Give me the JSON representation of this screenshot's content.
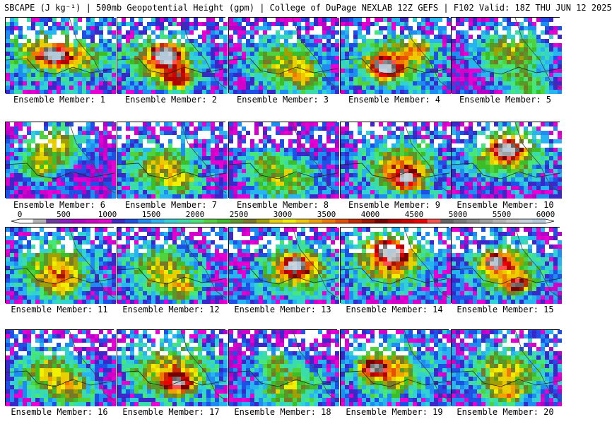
{
  "header": {
    "title": "SBCAPE (J kg⁻¹) | 500mb Geopotential Height (gpm) | College of DuPage NEXLAB 12Z GEFS | F102 Valid: 18Z THU JUN 12 2025"
  },
  "panels": [
    {
      "label": "Ensemble Member: 1",
      "base": 1300,
      "blobs": [
        [
          0.35,
          0.45,
          0.25,
          2000
        ],
        [
          0.7,
          0.55,
          0.2,
          1500
        ],
        [
          0.45,
          0.5,
          0.12,
          3000
        ]
      ]
    },
    {
      "label": "Ensemble Member: 2",
      "base": 1200,
      "blobs": [
        [
          0.4,
          0.55,
          0.28,
          2200
        ],
        [
          0.45,
          0.5,
          0.12,
          3600
        ],
        [
          0.55,
          0.8,
          0.15,
          2500
        ]
      ]
    },
    {
      "label": "Ensemble Member: 3",
      "base": 1100,
      "blobs": [
        [
          0.5,
          0.6,
          0.3,
          1800
        ],
        [
          0.7,
          0.8,
          0.15,
          1400
        ]
      ]
    },
    {
      "label": "Ensemble Member: 4",
      "base": 1200,
      "blobs": [
        [
          0.45,
          0.6,
          0.3,
          2000
        ],
        [
          0.4,
          0.65,
          0.12,
          3200
        ],
        [
          0.7,
          0.4,
          0.15,
          1500
        ]
      ]
    },
    {
      "label": "Ensemble Member: 5",
      "base": 1000,
      "blobs": [
        [
          0.55,
          0.45,
          0.3,
          1800
        ],
        [
          0.7,
          0.9,
          0.2,
          1400
        ]
      ]
    },
    {
      "label": "Ensemble Member: 6",
      "base": 1000,
      "blobs": [
        [
          0.45,
          0.3,
          0.25,
          1800
        ],
        [
          0.3,
          0.6,
          0.2,
          1400
        ]
      ]
    },
    {
      "label": "Ensemble Member: 7",
      "base": 1100,
      "blobs": [
        [
          0.4,
          0.6,
          0.3,
          1800
        ],
        [
          0.6,
          0.8,
          0.15,
          1200
        ]
      ]
    },
    {
      "label": "Ensemble Member: 8",
      "base": 1000,
      "blobs": [
        [
          0.5,
          0.75,
          0.3,
          1700
        ],
        [
          0.3,
          0.5,
          0.15,
          1000
        ]
      ]
    },
    {
      "label": "Ensemble Member: 9",
      "base": 1200,
      "blobs": [
        [
          0.55,
          0.6,
          0.3,
          2200
        ],
        [
          0.6,
          0.75,
          0.12,
          3100
        ]
      ]
    },
    {
      "label": "Ensemble Member: 10",
      "base": 1100,
      "blobs": [
        [
          0.5,
          0.4,
          0.3,
          2200
        ],
        [
          0.5,
          0.35,
          0.12,
          3200
        ]
      ]
    },
    {
      "label": "Ensemble Member: 11",
      "base": 1100,
      "blobs": [
        [
          0.45,
          0.5,
          0.3,
          1800
        ],
        [
          0.5,
          0.75,
          0.2,
          1400
        ]
      ]
    },
    {
      "label": "Ensemble Member: 12",
      "base": 1100,
      "blobs": [
        [
          0.4,
          0.55,
          0.3,
          1800
        ],
        [
          0.6,
          0.8,
          0.15,
          1500
        ]
      ]
    },
    {
      "label": "Ensemble Member: 13",
      "base": 1150,
      "blobs": [
        [
          0.6,
          0.55,
          0.3,
          2000
        ],
        [
          0.6,
          0.5,
          0.12,
          3200
        ]
      ]
    },
    {
      "label": "Ensemble Member: 14",
      "base": 1200,
      "blobs": [
        [
          0.45,
          0.45,
          0.3,
          2200
        ],
        [
          0.45,
          0.3,
          0.15,
          3400
        ]
      ]
    },
    {
      "label": "Ensemble Member: 15",
      "base": 1100,
      "blobs": [
        [
          0.5,
          0.55,
          0.3,
          2000
        ],
        [
          0.4,
          0.45,
          0.12,
          3100
        ],
        [
          0.6,
          0.75,
          0.1,
          3000
        ]
      ]
    },
    {
      "label": "Ensemble Member: 16",
      "base": 1000,
      "blobs": [
        [
          0.4,
          0.55,
          0.3,
          1800
        ],
        [
          0.6,
          0.8,
          0.2,
          1400
        ]
      ]
    },
    {
      "label": "Ensemble Member: 17",
      "base": 1200,
      "blobs": [
        [
          0.5,
          0.55,
          0.32,
          2100
        ],
        [
          0.55,
          0.7,
          0.12,
          2800
        ]
      ]
    },
    {
      "label": "Ensemble Member: 18",
      "base": 1000,
      "blobs": [
        [
          0.55,
          0.75,
          0.3,
          1700
        ],
        [
          0.4,
          0.4,
          0.15,
          1100
        ]
      ]
    },
    {
      "label": "Ensemble Member: 19",
      "base": 1150,
      "blobs": [
        [
          0.45,
          0.55,
          0.3,
          2000
        ],
        [
          0.3,
          0.5,
          0.12,
          2800
        ]
      ]
    },
    {
      "label": "Ensemble Member: 20",
      "base": 1100,
      "blobs": [
        [
          0.5,
          0.55,
          0.3,
          1900
        ],
        [
          0.5,
          0.85,
          0.15,
          1500
        ]
      ]
    }
  ],
  "colorbar": {
    "ticks": [
      "0",
      "500",
      "1000",
      "1500",
      "2000",
      "2500",
      "3000",
      "3500",
      "4000",
      "4500",
      "5000",
      "5500",
      "6000"
    ],
    "palette": [
      "#ffffff",
      "#b4b4b4",
      "#6e3aa0",
      "#8c1ec8",
      "#b400c8",
      "#d200c8",
      "#e600d2",
      "#3c28c8",
      "#1e50e6",
      "#1e8cf0",
      "#28b4f0",
      "#32d2d2",
      "#3cdcaa",
      "#46e678",
      "#50d23c",
      "#3cbe28",
      "#5a9628",
      "#787828",
      "#a0a000",
      "#e6d200",
      "#f0f000",
      "#f0c800",
      "#f0a000",
      "#f07800",
      "#e65000",
      "#c82800",
      "#a01400",
      "#780000",
      "#b40000",
      "#d20000",
      "#f00000",
      "#ff5050",
      "#646464",
      "#787878",
      "#8c8c8c",
      "#a0a0a0",
      "#b4b4b4",
      "#c8c8c8",
      "#c8d2dc",
      "#b4c8dc"
    ]
  }
}
